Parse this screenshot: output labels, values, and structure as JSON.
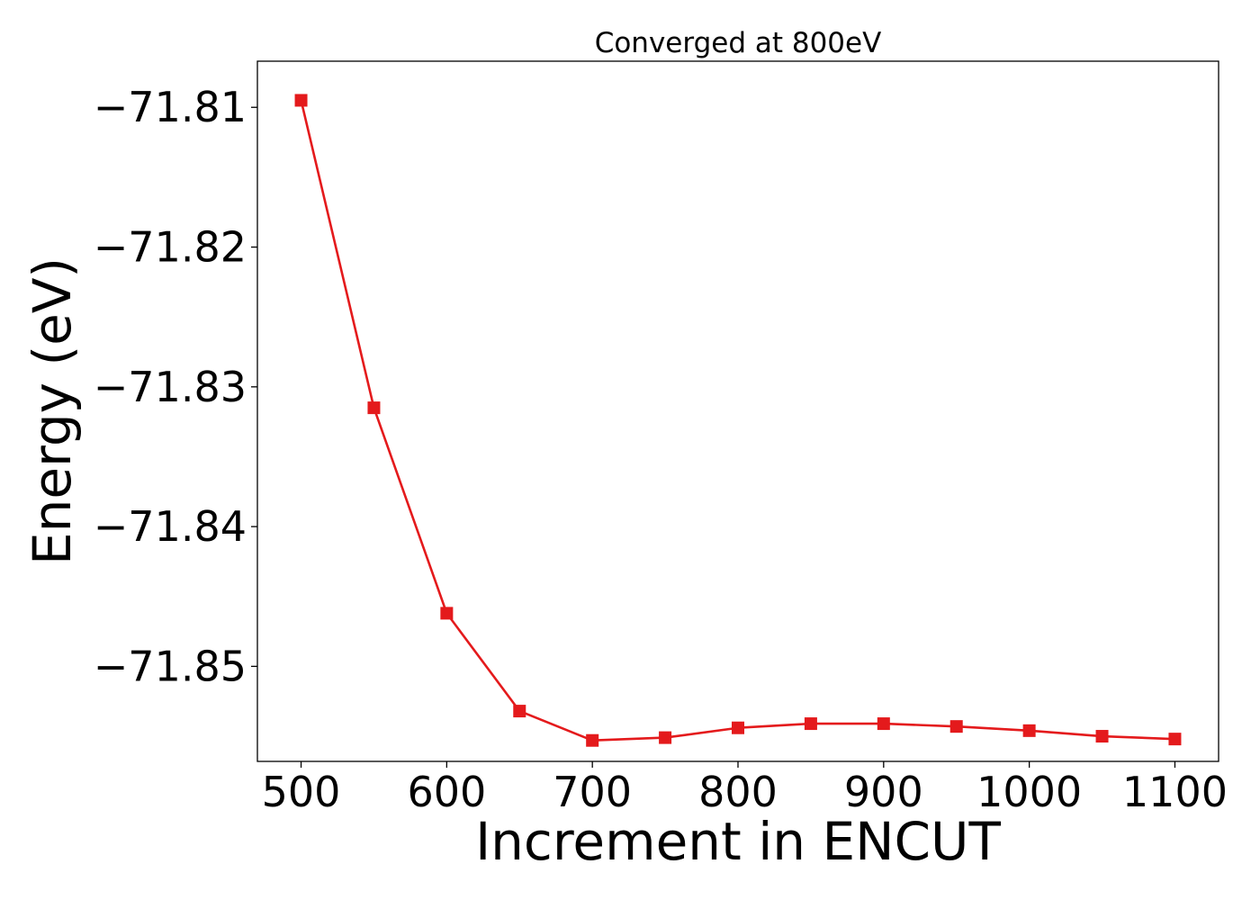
{
  "chart_data": {
    "type": "line",
    "title": "Converged at 800eV",
    "xlabel": "Increment in ENCUT",
    "ylabel": "Energy (eV)",
    "x": [
      500,
      550,
      600,
      650,
      700,
      750,
      800,
      850,
      900,
      950,
      1000,
      1050,
      1100
    ],
    "series": [
      {
        "values": [
          -71.8095,
          -71.8315,
          -71.8462,
          -71.8532,
          -71.8553,
          -71.8551,
          -71.8544,
          -71.8541,
          -71.8541,
          -71.8543,
          -71.8546,
          -71.855,
          -71.8552
        ],
        "color": "#e41a1c",
        "marker": "square"
      }
    ],
    "xticks": [
      "500",
      "600",
      "700",
      "800",
      "900",
      "1000",
      "1100"
    ],
    "xtick_values": [
      500,
      600,
      700,
      800,
      900,
      1000,
      1100
    ],
    "yticks": [
      "−71.81",
      "−71.82",
      "−71.83",
      "−71.84",
      "−71.85"
    ],
    "ytick_values": [
      -71.81,
      -71.82,
      -71.83,
      -71.84,
      -71.85
    ],
    "xlim": [
      470,
      1130
    ],
    "ylim": [
      -71.8568,
      -71.8067
    ],
    "grid": false,
    "legend": false
  }
}
